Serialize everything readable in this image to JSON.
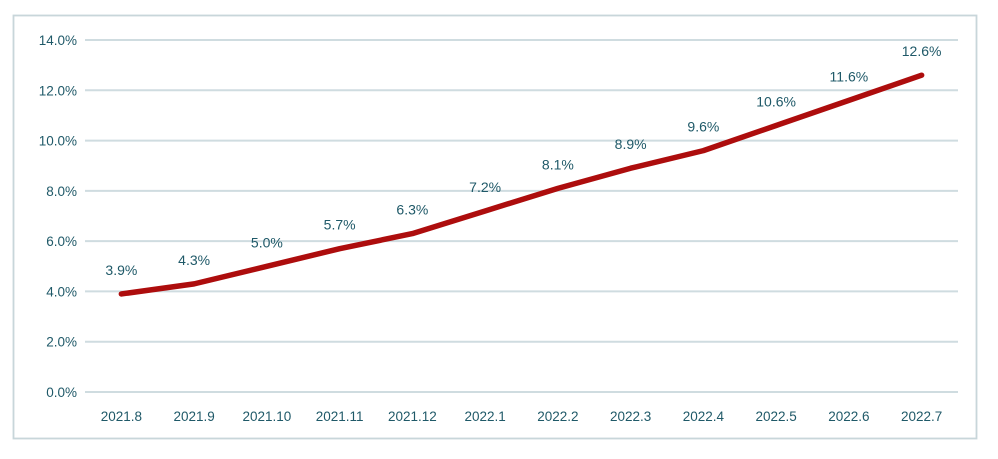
{
  "chart_data": {
    "type": "line",
    "title": "",
    "xlabel": "",
    "ylabel": "",
    "categories": [
      "2021.8",
      "2021.9",
      "2021.10",
      "2021.11",
      "2021.12",
      "2022.1",
      "2022.2",
      "2022.3",
      "2022.4",
      "2022.5",
      "2022.6",
      "2022.7"
    ],
    "series": [
      {
        "name": "rate",
        "values": [
          3.9,
          4.3,
          5.0,
          5.7,
          6.3,
          7.2,
          8.1,
          8.9,
          9.6,
          10.6,
          11.6,
          12.6
        ],
        "data_labels": [
          "3.9%",
          "4.3%",
          "5.0%",
          "5.7%",
          "6.3%",
          "7.2%",
          "8.1%",
          "8.9%",
          "9.6%",
          "10.6%",
          "11.6%",
          "12.6%"
        ]
      }
    ],
    "y_ticks": [
      {
        "label": "14.0%",
        "value": 14
      },
      {
        "label": "12.0%",
        "value": 12
      },
      {
        "label": "10.0%",
        "value": 10
      },
      {
        "label": "8.0%",
        "value": 8
      },
      {
        "label": "6.0%",
        "value": 6
      },
      {
        "label": "4.0%",
        "value": 4
      },
      {
        "label": "2.0%",
        "value": 2
      },
      {
        "label": "0.0%",
        "value": 0
      }
    ],
    "ylim": [
      0,
      14
    ],
    "grid": true,
    "legend": "none",
    "colors": {
      "line": "#AD0D0D",
      "label_text": "#1F5968",
      "tick_text": "#1F5968",
      "gridline": "#CFDCE0",
      "border": "#C8D6DA",
      "background": "#FFFFFF"
    }
  }
}
